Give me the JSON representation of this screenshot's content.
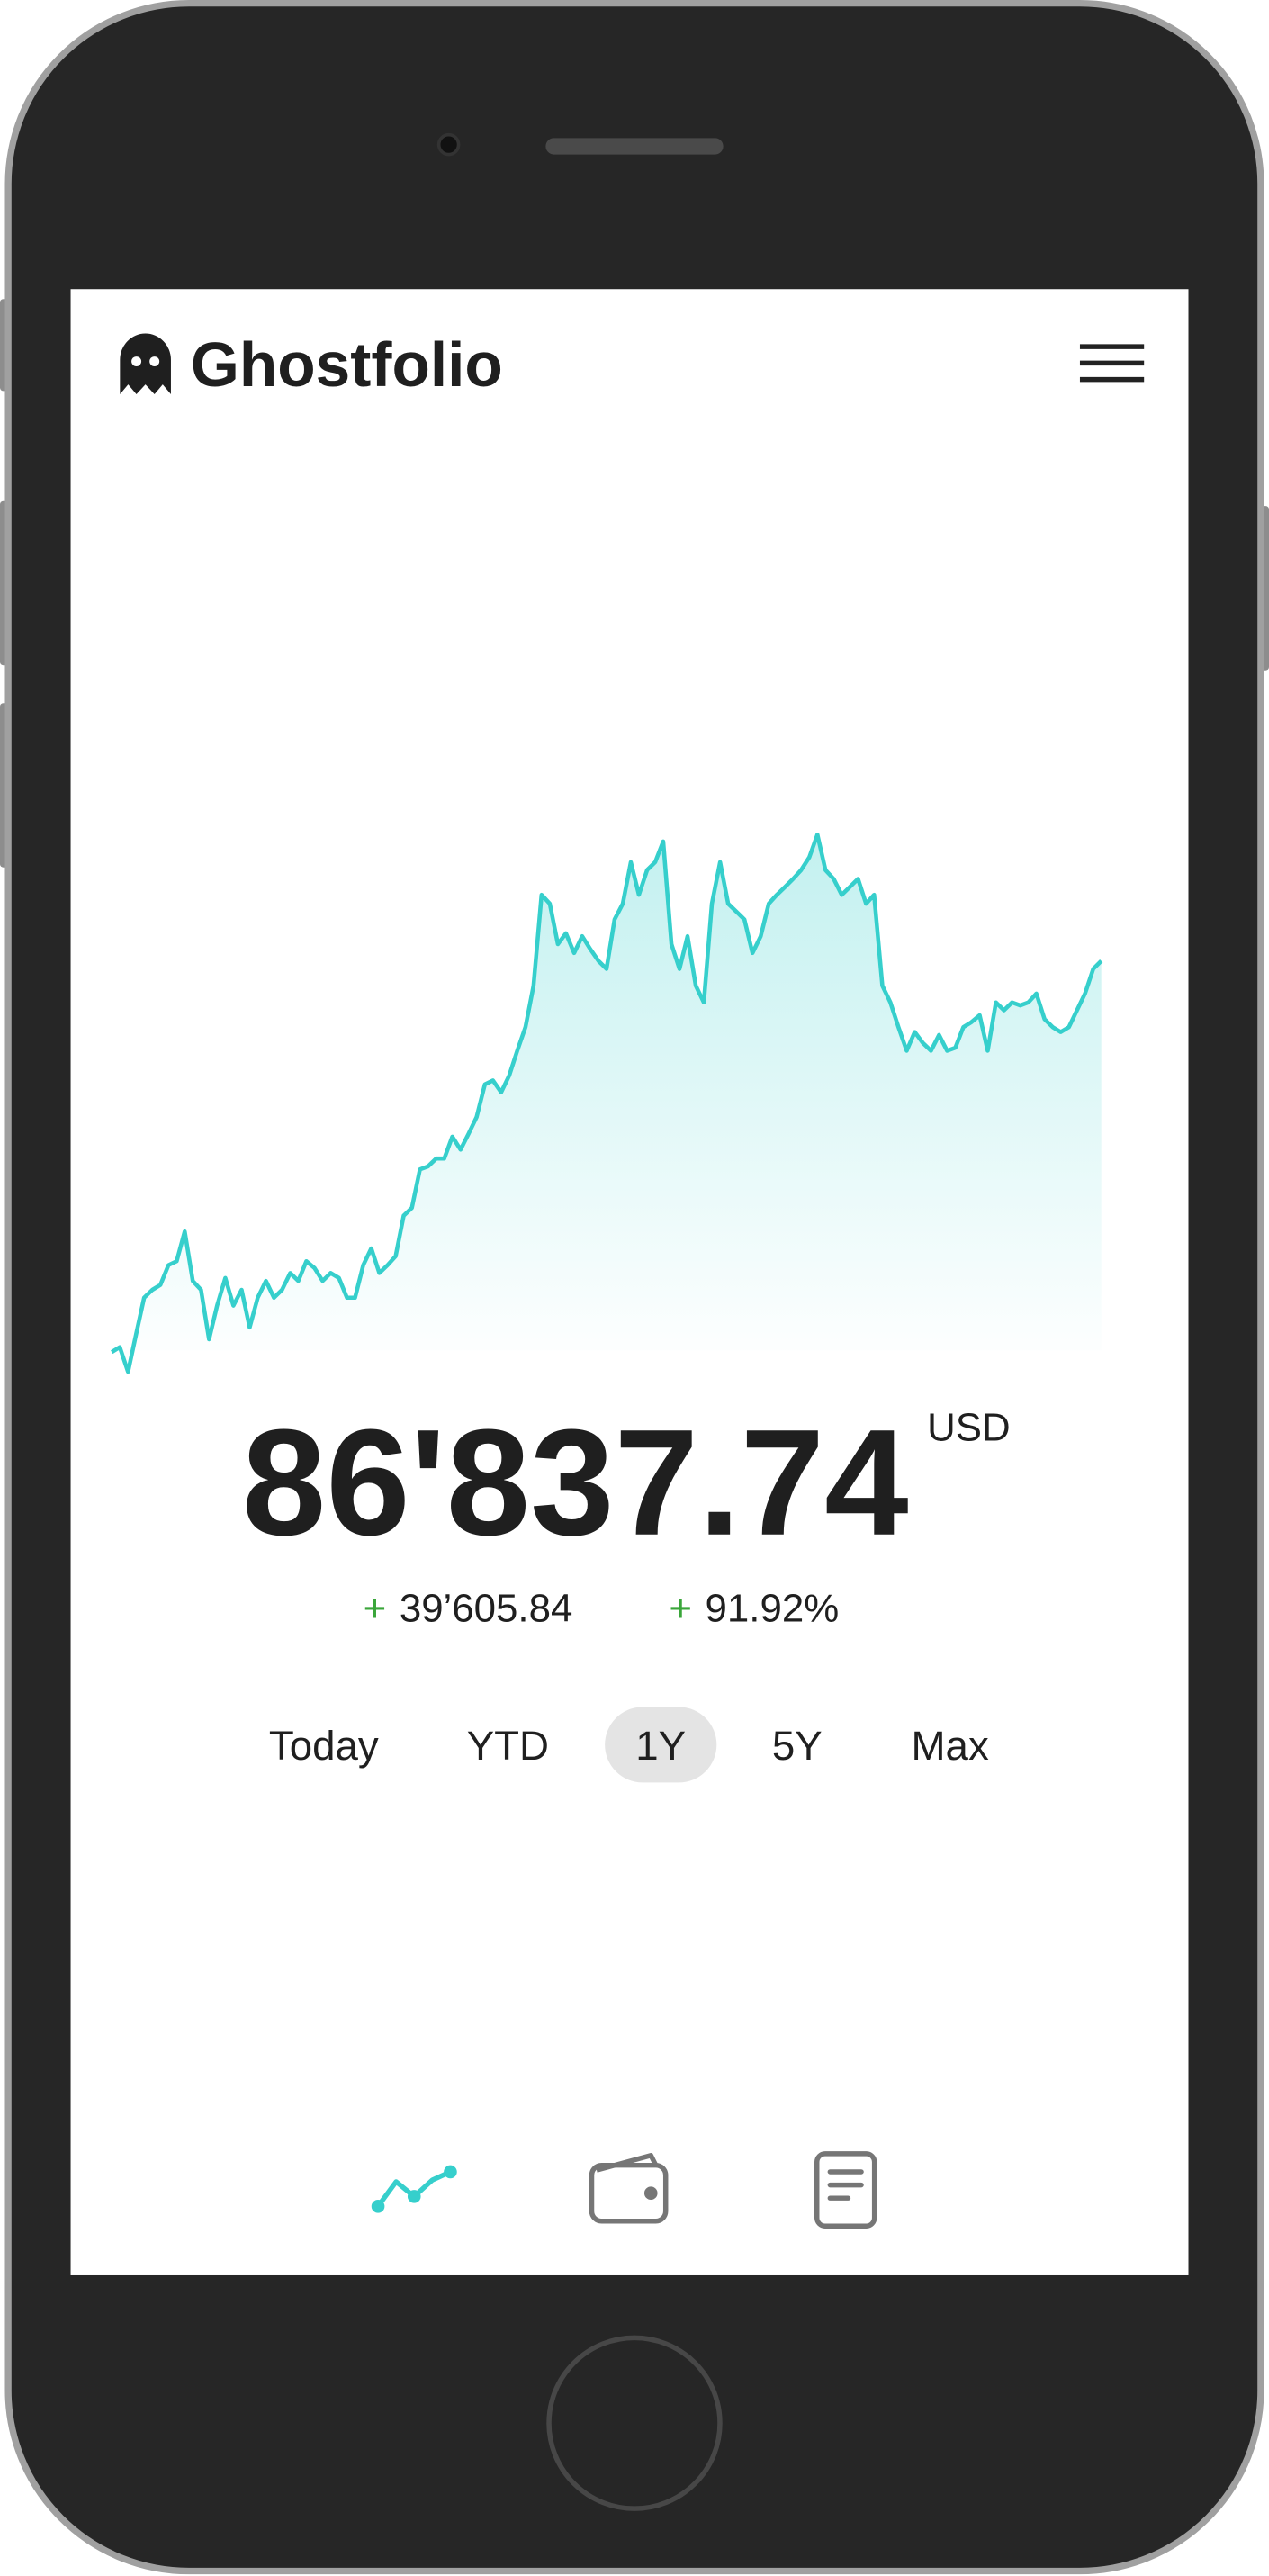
{
  "header": {
    "title": "Ghostfolio"
  },
  "chart_data": {
    "type": "area",
    "color": "#36cfcc",
    "values": [
      47200,
      47700,
      45200,
      49000,
      52700,
      53500,
      54000,
      56000,
      56400,
      59400,
      54400,
      53500,
      48500,
      51900,
      54700,
      51900,
      53500,
      49700,
      52700,
      54400,
      52700,
      53500,
      55200,
      54400,
      56400,
      55700,
      54400,
      55200,
      54700,
      52700,
      52700,
      56000,
      57700,
      55200,
      56000,
      56900,
      61000,
      61800,
      65700,
      66000,
      66800,
      66800,
      69000,
      67700,
      69300,
      71000,
      74300,
      74700,
      73500,
      75200,
      77700,
      80100,
      84300,
      93500,
      92600,
      88500,
      89600,
      87600,
      89300,
      88000,
      86800,
      86000,
      91000,
      92600,
      96800,
      93500,
      96000,
      96800,
      98900,
      88500,
      86000,
      89300,
      84300,
      82600,
      92600,
      96800,
      92600,
      91800,
      91000,
      87600,
      89300,
      92600,
      93500,
      94300,
      95100,
      96000,
      97300,
      99600,
      96000,
      95100,
      93500,
      94300,
      95100,
      92600,
      93500,
      84300,
      82600,
      80100,
      77700,
      79600,
      78500,
      77700,
      79300,
      77700,
      78000,
      80100,
      80600,
      81300,
      77700,
      82600,
      81800,
      82600,
      82300,
      82600,
      83500,
      80900,
      80100,
      79600,
      80100,
      81800,
      83500,
      86000,
      86800
    ]
  },
  "performance": {
    "value": "86'837.74",
    "currency": "USD",
    "absolute_change": {
      "sign": "+",
      "value": "39’605.84"
    },
    "relative_change": {
      "sign": "+",
      "value": "91.92%"
    }
  },
  "ranges": {
    "options": [
      "Today",
      "YTD",
      "1Y",
      "5Y",
      "Max"
    ],
    "selected": 2
  }
}
